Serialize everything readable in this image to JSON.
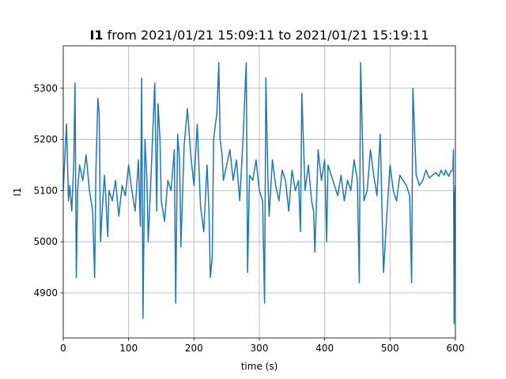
{
  "chart_data": {
    "type": "line",
    "title_bold": "I1",
    "title_rest": " from 2021/01/21 15:09:11 to 2021/01/21 15:19:11",
    "xlabel": "time (s)",
    "ylabel": "I1",
    "xlim": [
      0,
      600
    ],
    "ylim": [
      4812,
      5383
    ],
    "xticks": [
      0,
      100,
      200,
      300,
      400,
      500,
      600
    ],
    "yticks": [
      4900,
      5000,
      5100,
      5200,
      5300
    ],
    "grid": true,
    "line_color": "#1f77b4",
    "series": [
      {
        "x": [
          0,
          3,
          5,
          8,
          10,
          13,
          16,
          18,
          20,
          22,
          25,
          30,
          35,
          40,
          45,
          48,
          50,
          53,
          55,
          57,
          60,
          63,
          65,
          68,
          70,
          75,
          80,
          85,
          90,
          95,
          100,
          105,
          110,
          115,
          118,
          120,
          122,
          125,
          128,
          130,
          135,
          140,
          143,
          145,
          148,
          150,
          155,
          160,
          165,
          170,
          172,
          175,
          178,
          180,
          185,
          190,
          195,
          200,
          205,
          210,
          215,
          220,
          223,
          225,
          228,
          230,
          235,
          238,
          240,
          243,
          245,
          250,
          255,
          260,
          265,
          270,
          275,
          280,
          282,
          285,
          290,
          295,
          300,
          305,
          308,
          310,
          313,
          315,
          320,
          325,
          330,
          335,
          340,
          345,
          350,
          355,
          360,
          363,
          365,
          370,
          375,
          380,
          383,
          385,
          390,
          395,
          400,
          403,
          405,
          410,
          415,
          420,
          425,
          430,
          435,
          440,
          445,
          450,
          453,
          455,
          460,
          465,
          470,
          475,
          480,
          485,
          490,
          495,
          500,
          505,
          510,
          515,
          520,
          525,
          530,
          533,
          535,
          540,
          545,
          550,
          555,
          560,
          565,
          570,
          575,
          578,
          580,
          583,
          585,
          588,
          590,
          593,
          596,
          597,
          598,
          599,
          600
        ],
        "y": [
          5100,
          5180,
          5230,
          5080,
          5110,
          5060,
          5150,
          5310,
          4930,
          5100,
          5150,
          5120,
          5170,
          5100,
          5060,
          4930,
          5140,
          5280,
          5250,
          5000,
          5070,
          5130,
          5090,
          5010,
          5100,
          5080,
          5120,
          5050,
          5110,
          5090,
          5150,
          5100,
          5060,
          5160,
          5030,
          5320,
          4850,
          5200,
          5120,
          5000,
          5150,
          5310,
          5060,
          5270,
          5200,
          5080,
          5040,
          5120,
          5100,
          5180,
          4880,
          5210,
          5160,
          4990,
          5190,
          5260,
          5170,
          5110,
          5230,
          5070,
          5020,
          5150,
          5060,
          4930,
          4970,
          5200,
          5250,
          5350,
          5200,
          5170,
          5120,
          5150,
          5180,
          5120,
          5160,
          5080,
          5200,
          5350,
          4940,
          5130,
          5120,
          5160,
          5100,
          5080,
          4880,
          5320,
          5130,
          5050,
          5160,
          5110,
          5080,
          5140,
          5120,
          5060,
          5140,
          5100,
          5120,
          5020,
          5290,
          5100,
          5150,
          5080,
          5060,
          4980,
          5180,
          5120,
          5160,
          5000,
          5150,
          5130,
          5110,
          5090,
          5130,
          5080,
          5120,
          5100,
          5160,
          5120,
          4920,
          5350,
          5080,
          5100,
          5180,
          5130,
          5090,
          5210,
          4940,
          5050,
          5150,
          5100,
          5080,
          5130,
          5120,
          5110,
          5090,
          4920,
          5300,
          5130,
          5110,
          5120,
          5140,
          5125,
          5130,
          5135,
          5128,
          5140,
          5135,
          5130,
          5140,
          5132,
          5128,
          5138,
          5140,
          5180,
          4840,
          5090,
          5110
        ]
      }
    ]
  }
}
